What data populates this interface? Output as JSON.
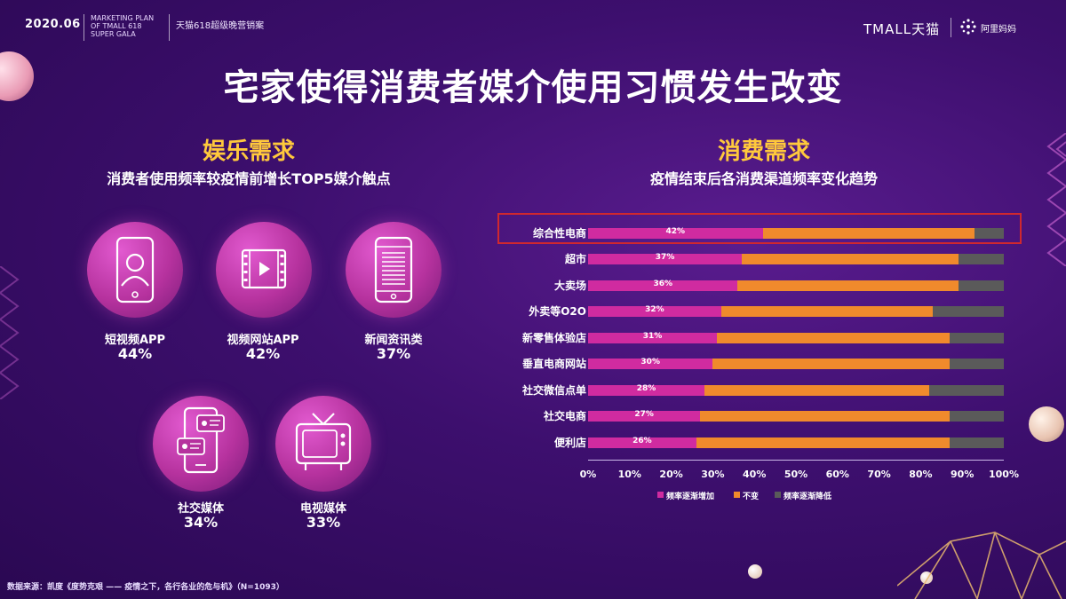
{
  "header": {
    "date": "2020.06",
    "subtitle_lines": [
      "MARKETING PLAN",
      "OF TMALL 618",
      "SUPER GALA"
    ],
    "cn_subtitle": "天猫618超级晚营销案",
    "brand_tmall": "TMALL天猫",
    "brand_alimama": "阿里妈妈"
  },
  "title": "宅家使得消费者媒介使用习惯发生改变",
  "left": {
    "heading": "娱乐需求",
    "subheading": "消费者使用频率较疫情前增长TOP5媒介触点",
    "media": [
      {
        "icon": "smartphone-user-icon",
        "label": "短视频APP",
        "value": "44%"
      },
      {
        "icon": "video-player-icon",
        "label": "视频网站APP",
        "value": "42%"
      },
      {
        "icon": "news-phone-icon",
        "label": "新闻资讯类",
        "value": "37%"
      },
      {
        "icon": "social-chat-icon",
        "label": "社交媒体",
        "value": "34%"
      },
      {
        "icon": "tv-icon",
        "label": "电视媒体",
        "value": "33%"
      }
    ]
  },
  "right": {
    "heading": "消费需求",
    "subheading": "疫情结束后各消费渠道频率变化趋势"
  },
  "chart_data": {
    "type": "bar",
    "orientation": "horizontal-stacked-100",
    "categories": [
      "综合性电商",
      "超市",
      "大卖场",
      "外卖等O2O",
      "新零售体验店",
      "垂直电商网站",
      "社交微信点单",
      "社交电商",
      "便利店"
    ],
    "series": [
      {
        "name": "频率逐渐增加",
        "color": "#d02ba0",
        "values": [
          42,
          37,
          36,
          32,
          31,
          30,
          28,
          27,
          26
        ],
        "labels": [
          "42%",
          "37%",
          "36%",
          "32%",
          "31%",
          "30%",
          "28%",
          "27%",
          "26%"
        ]
      },
      {
        "name": "不变",
        "color": "#f08a2c",
        "values": [
          51,
          52,
          53,
          51,
          56,
          57,
          54,
          60,
          61
        ]
      },
      {
        "name": "频率逐渐降低",
        "color": "#5a5a5a",
        "values": [
          7,
          11,
          11,
          17,
          13,
          13,
          18,
          13,
          13
        ]
      }
    ],
    "xticks": [
      "0%",
      "10%",
      "20%",
      "30%",
      "40%",
      "50%",
      "60%",
      "70%",
      "80%",
      "90%",
      "100%"
    ],
    "xlim": [
      0,
      100
    ],
    "highlight_category": "综合性电商",
    "legend_position": "bottom"
  },
  "source": "数据来源：凯度《度势克艰 —— 疫情之下，各行各业的危与机》（N=1093）"
}
